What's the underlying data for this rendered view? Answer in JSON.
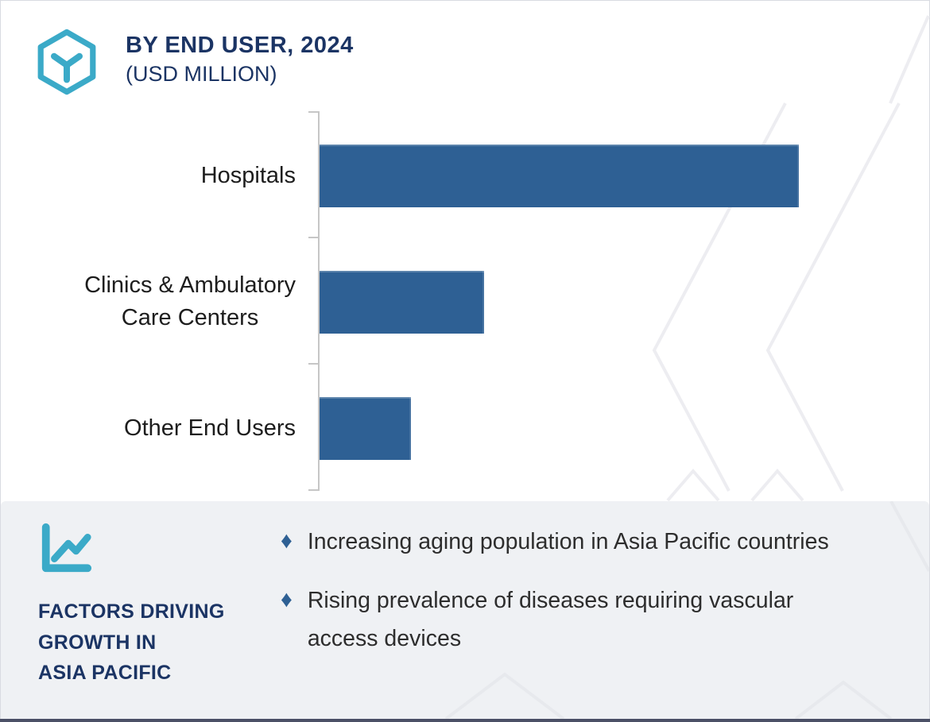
{
  "header": {
    "title": "BY END USER, 2024",
    "subtitle": "(USD MILLION)",
    "logo_icon": "hexagon-y-icon"
  },
  "chart_data": {
    "type": "bar",
    "orientation": "horizontal",
    "title": "BY END USER, 2024 (USD MILLION)",
    "categories": [
      "Hospitals",
      "Clinics & Ambulatory Care Centers",
      "Other End Users"
    ],
    "category_label_lines": [
      [
        "Hospitals"
      ],
      [
        "Clinics & Ambulatory",
        "Care Centers"
      ],
      [
        "Other End Users"
      ]
    ],
    "values_pct_of_max": [
      100,
      34.3,
      19.1
    ],
    "value_labels_shown": false,
    "value_axis_shown": false,
    "gridlines": false,
    "legend": "none",
    "xlabel": "",
    "ylabel": ""
  },
  "factors": {
    "icon": "line-chart-icon",
    "heading_lines": [
      "FACTORS DRIVING",
      "GROWTH IN",
      "ASIA PACIFIC"
    ],
    "bullet_glyph": "♦",
    "items": [
      "Increasing aging population in Asia Pacific countries",
      "Rising prevalence of diseases requiring vascular access devices"
    ]
  },
  "colors": {
    "teal": "#3BAAC8",
    "navy": "#1B3464",
    "bar_blue": "#2E6094",
    "bullet_blue": "#2E6094",
    "panel_bg": "#EFF1F4",
    "watermark_gray": "#EDEDF1",
    "axis_gray": "#C6C6C6"
  }
}
